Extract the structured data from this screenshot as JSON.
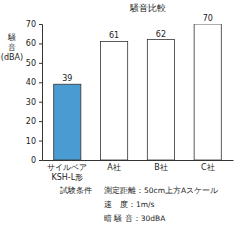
{
  "chart_data": {
    "type": "bar",
    "title": "騒音比較",
    "y_label": "騒音(dBA)",
    "categories": [
      "サイルベア KSH-L形",
      "A社",
      "B社",
      "C社"
    ],
    "values": [
      39,
      61,
      62,
      70
    ],
    "colors": [
      "#4a9bd1",
      "#ffffff",
      "#ffffff",
      "#ffffff"
    ],
    "ylim": [
      0,
      70
    ],
    "yticks": [
      0,
      10,
      20,
      30,
      40,
      50,
      60,
      70
    ],
    "grid": false,
    "data_labels": true,
    "annotations": [
      "試験条件",
      "測定距離：50cm上方Aスケール",
      "速　度：1m/s",
      "暗 騒 音：30dBA"
    ]
  }
}
